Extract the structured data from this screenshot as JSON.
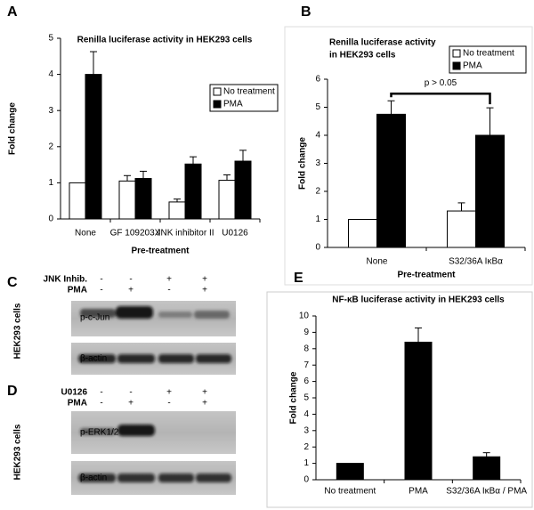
{
  "chart_data": [
    {
      "label": "A",
      "type": "bar",
      "title": "Renilla luciferase activity in HEK293 cells",
      "categories": [
        "None",
        "GF 109203X",
        "JNK inhibitor II",
        "U0126"
      ],
      "series": [
        {
          "name": "No treatment",
          "color": "#ffffff",
          "values": [
            1.0,
            1.05,
            0.47,
            1.07
          ],
          "errors": [
            null,
            0.15,
            0.08,
            0.15
          ]
        },
        {
          "name": "PMA",
          "color": "#000000",
          "values": [
            4.0,
            1.12,
            1.52,
            1.6
          ],
          "errors": [
            0.63,
            0.2,
            0.2,
            0.3
          ]
        }
      ],
      "ylabel": "Fold change",
      "xlabel": "Pre-treatment",
      "ylim": [
        0,
        5
      ],
      "yticks": [
        0,
        1,
        2,
        3,
        4,
        5
      ],
      "legend": "right"
    },
    {
      "label": "B",
      "type": "bar",
      "title": [
        "Renilla luciferase activity",
        "in HEK293 cells"
      ],
      "categories": [
        "None",
        "S32/36A IκBα"
      ],
      "series": [
        {
          "name": "No treatment",
          "color": "#ffffff",
          "values": [
            1.0,
            1.3
          ],
          "errors": [
            null,
            0.29
          ]
        },
        {
          "name": "PMA",
          "color": "#000000",
          "values": [
            4.75,
            4.0
          ],
          "errors": [
            0.48,
            0.98
          ]
        }
      ],
      "annotation": "p > 0.05",
      "ylabel": "Fold change",
      "xlabel": "Pre-treatment",
      "ylim": [
        0,
        6
      ],
      "yticks": [
        0,
        1,
        2,
        3,
        4,
        5,
        6
      ],
      "legend": "upper right"
    },
    {
      "label": "E",
      "type": "bar",
      "title": "NF-κB luciferase activity in HEK293 cells",
      "categories": [
        "No treatment",
        "PMA",
        "S32/36A IκBα / PMA"
      ],
      "values": [
        1.0,
        8.4,
        1.4
      ],
      "errors": [
        null,
        0.87,
        0.25
      ],
      "color": "#000000",
      "ylabel": "Fold change",
      "ylim": [
        0,
        10
      ],
      "yticks": [
        0,
        1,
        2,
        3,
        4,
        5,
        6,
        7,
        8,
        9,
        10
      ]
    }
  ],
  "blots": [
    {
      "label": "C",
      "side_label": "HEK293 cells",
      "conditions": [
        {
          "name": "JNK Inhib.",
          "signs": [
            "-",
            "-",
            "+",
            "+"
          ]
        },
        {
          "name": "PMA",
          "signs": [
            "-",
            "+",
            "-",
            "+"
          ]
        }
      ],
      "bands": [
        "p-c-Jun",
        "β-actin"
      ]
    },
    {
      "label": "D",
      "side_label": "HEK293 cells",
      "conditions": [
        {
          "name": "U0126",
          "signs": [
            "-",
            "-",
            "+",
            "+"
          ]
        },
        {
          "name": "PMA",
          "signs": [
            "-",
            "+",
            "-",
            "+"
          ]
        }
      ],
      "bands": [
        "p-ERK1/2",
        "β-actin"
      ]
    }
  ]
}
